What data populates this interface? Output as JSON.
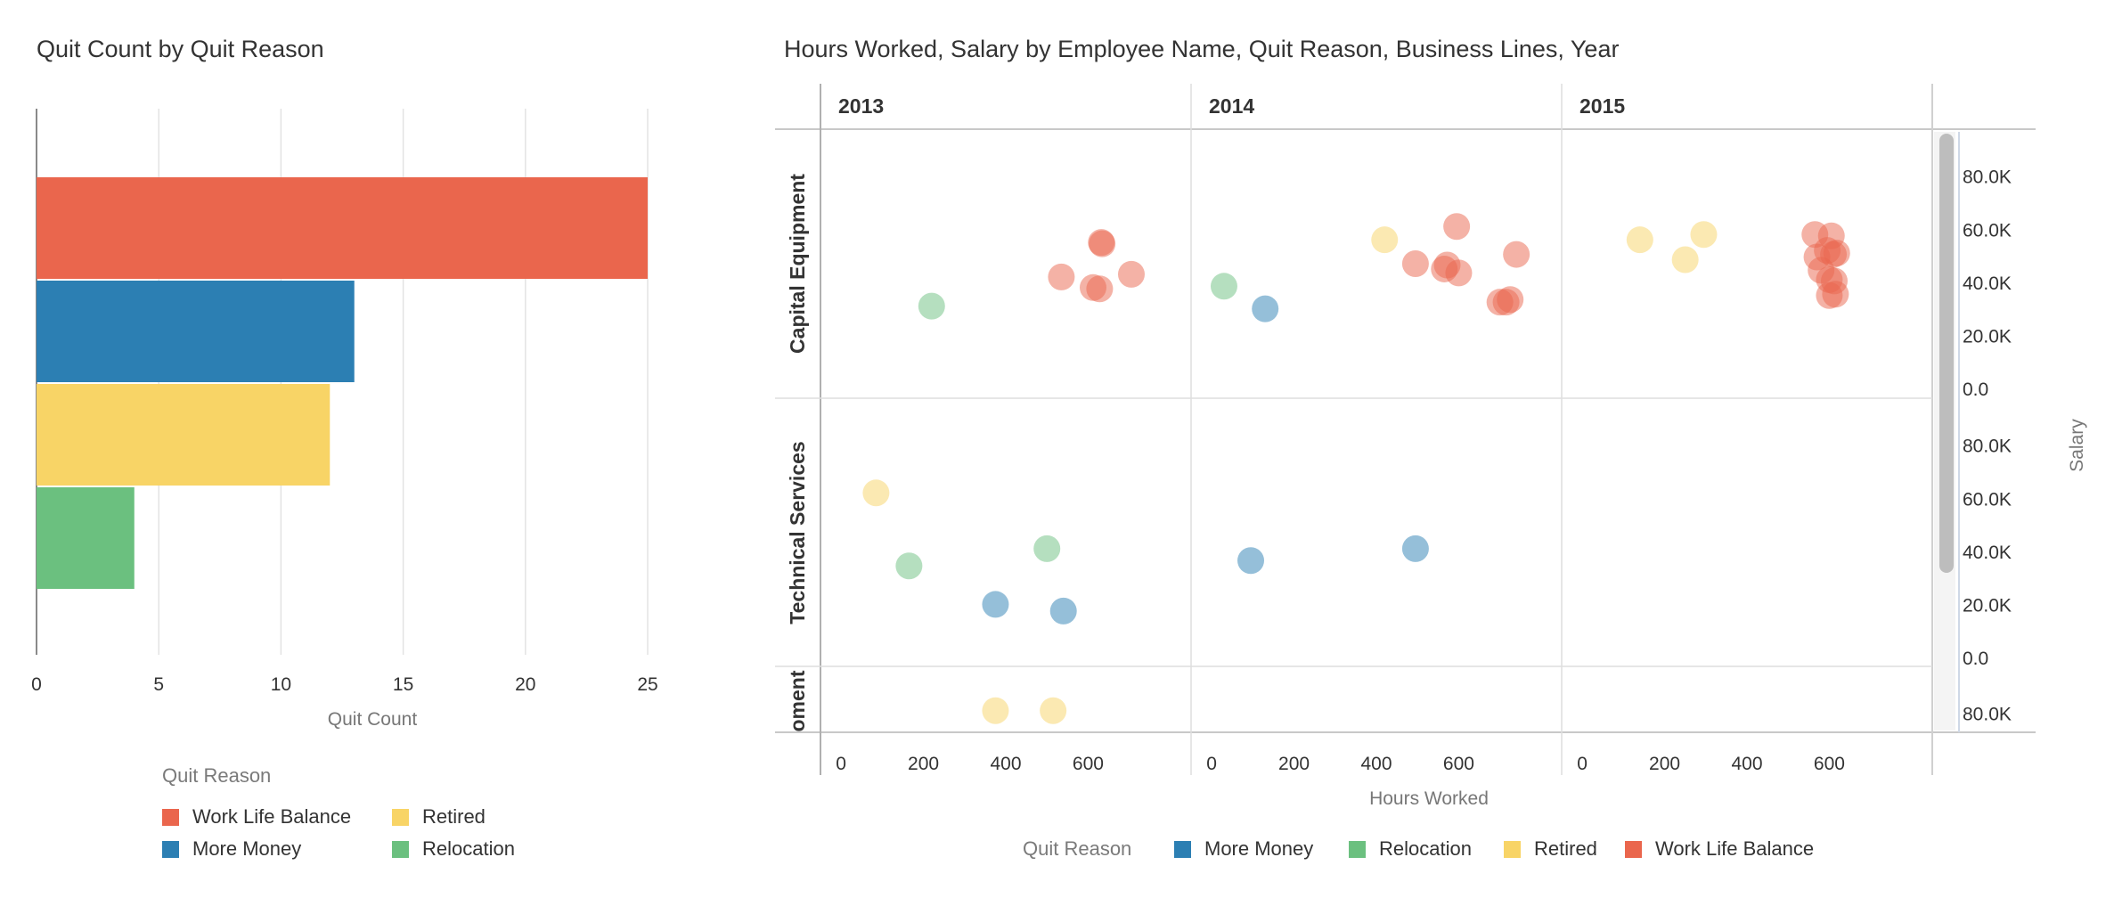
{
  "colors": {
    "work_life_balance": "#EA664D",
    "more_money": "#2C7FB3",
    "retired": "#F8D466",
    "relocation": "#6BC07F"
  },
  "chart_data": [
    {
      "type": "bar",
      "orientation": "horizontal",
      "title": "Quit Count by Quit Reason",
      "xlabel": "Quit Count",
      "ylabel": "",
      "xlim": [
        0,
        25
      ],
      "xticks": [
        "0",
        "5",
        "10",
        "15",
        "20",
        "25"
      ],
      "grid": true,
      "categories": [
        "Work Life Balance",
        "More Money",
        "Retired",
        "Relocation"
      ],
      "values": [
        25,
        13,
        12,
        4
      ],
      "legend": {
        "title": "Quit Reason",
        "placement": "bottom",
        "items": [
          {
            "label": "Work Life Balance",
            "color": "#EA664D"
          },
          {
            "label": "Retired",
            "color": "#F8D466"
          },
          {
            "label": "More Money",
            "color": "#2C7FB3"
          },
          {
            "label": "Relocation",
            "color": "#6BC07F"
          }
        ]
      }
    },
    {
      "type": "scatter",
      "title": "Hours Worked, Salary by Employee Name, Quit Reason, Business Lines, Year",
      "xlabel": "Hours Worked",
      "ylabel": "Salary",
      "columns": [
        "2013",
        "2014",
        "2015"
      ],
      "rows": [
        "Capital Equipment",
        "Technical Services",
        "oment"
      ],
      "xlim": [
        -50,
        850
      ],
      "xticks": [
        "0",
        "200",
        "400",
        "600"
      ],
      "ylim": [
        0,
        95000
      ],
      "yticks": [
        "0.0",
        "20.0K",
        "40.0K",
        "60.0K",
        "80.0K"
      ],
      "legend": {
        "title": "Quit Reason",
        "placement": "bottom",
        "items": [
          {
            "label": "More Money",
            "color": "#2C7FB3"
          },
          {
            "label": "Relocation",
            "color": "#6BC07F"
          },
          {
            "label": "Retired",
            "color": "#F8D466"
          },
          {
            "label": "Work Life Balance",
            "color": "#EA664D"
          }
        ]
      },
      "points": [
        {
          "row": 0,
          "col": 0,
          "reason": "Relocation",
          "x": 220,
          "y": 31000
        },
        {
          "row": 0,
          "col": 0,
          "reason": "Work Life Balance",
          "x": 535,
          "y": 42000
        },
        {
          "row": 0,
          "col": 0,
          "reason": "Work Life Balance",
          "x": 612,
          "y": 38000
        },
        {
          "row": 0,
          "col": 0,
          "reason": "Work Life Balance",
          "x": 628,
          "y": 37500
        },
        {
          "row": 0,
          "col": 0,
          "reason": "Work Life Balance",
          "x": 632,
          "y": 55000
        },
        {
          "row": 0,
          "col": 0,
          "reason": "Work Life Balance",
          "x": 634,
          "y": 54500
        },
        {
          "row": 0,
          "col": 0,
          "reason": "Work Life Balance",
          "x": 705,
          "y": 43000
        },
        {
          "row": 0,
          "col": 1,
          "reason": "Relocation",
          "x": 30,
          "y": 38500
        },
        {
          "row": 0,
          "col": 1,
          "reason": "More Money",
          "x": 130,
          "y": 30000
        },
        {
          "row": 0,
          "col": 1,
          "reason": "Retired",
          "x": 420,
          "y": 56000
        },
        {
          "row": 0,
          "col": 1,
          "reason": "Work Life Balance",
          "x": 495,
          "y": 47000
        },
        {
          "row": 0,
          "col": 1,
          "reason": "Work Life Balance",
          "x": 565,
          "y": 45000
        },
        {
          "row": 0,
          "col": 1,
          "reason": "Work Life Balance",
          "x": 572,
          "y": 46500
        },
        {
          "row": 0,
          "col": 1,
          "reason": "Work Life Balance",
          "x": 600,
          "y": 43500
        },
        {
          "row": 0,
          "col": 1,
          "reason": "Work Life Balance",
          "x": 595,
          "y": 61000
        },
        {
          "row": 0,
          "col": 1,
          "reason": "Work Life Balance",
          "x": 700,
          "y": 32500
        },
        {
          "row": 0,
          "col": 1,
          "reason": "Work Life Balance",
          "x": 715,
          "y": 32500
        },
        {
          "row": 0,
          "col": 1,
          "reason": "Work Life Balance",
          "x": 725,
          "y": 33500
        },
        {
          "row": 0,
          "col": 1,
          "reason": "Work Life Balance",
          "x": 740,
          "y": 50500
        },
        {
          "row": 0,
          "col": 2,
          "reason": "Retired",
          "x": 140,
          "y": 56000
        },
        {
          "row": 0,
          "col": 2,
          "reason": "Retired",
          "x": 250,
          "y": 48500
        },
        {
          "row": 0,
          "col": 2,
          "reason": "Retired",
          "x": 295,
          "y": 58000
        },
        {
          "row": 0,
          "col": 2,
          "reason": "Work Life Balance",
          "x": 565,
          "y": 58000
        },
        {
          "row": 0,
          "col": 2,
          "reason": "Work Life Balance",
          "x": 570,
          "y": 49500
        },
        {
          "row": 0,
          "col": 2,
          "reason": "Work Life Balance",
          "x": 580,
          "y": 44500
        },
        {
          "row": 0,
          "col": 2,
          "reason": "Work Life Balance",
          "x": 595,
          "y": 52000
        },
        {
          "row": 0,
          "col": 2,
          "reason": "Work Life Balance",
          "x": 600,
          "y": 41000
        },
        {
          "row": 0,
          "col": 2,
          "reason": "Work Life Balance",
          "x": 600,
          "y": 35000
        },
        {
          "row": 0,
          "col": 2,
          "reason": "Work Life Balance",
          "x": 605,
          "y": 57500
        },
        {
          "row": 0,
          "col": 2,
          "reason": "Work Life Balance",
          "x": 610,
          "y": 50500
        },
        {
          "row": 0,
          "col": 2,
          "reason": "Work Life Balance",
          "x": 612,
          "y": 40500
        },
        {
          "row": 0,
          "col": 2,
          "reason": "Work Life Balance",
          "x": 615,
          "y": 35500
        },
        {
          "row": 0,
          "col": 2,
          "reason": "Work Life Balance",
          "x": 618,
          "y": 51000
        },
        {
          "row": 1,
          "col": 0,
          "reason": "Retired",
          "x": 85,
          "y": 62000
        },
        {
          "row": 1,
          "col": 0,
          "reason": "Relocation",
          "x": 165,
          "y": 34500
        },
        {
          "row": 1,
          "col": 0,
          "reason": "Relocation",
          "x": 500,
          "y": 41000
        },
        {
          "row": 1,
          "col": 0,
          "reason": "More Money",
          "x": 375,
          "y": 20000
        },
        {
          "row": 1,
          "col": 0,
          "reason": "More Money",
          "x": 540,
          "y": 17500
        },
        {
          "row": 1,
          "col": 1,
          "reason": "More Money",
          "x": 95,
          "y": 36500
        },
        {
          "row": 1,
          "col": 1,
          "reason": "More Money",
          "x": 495,
          "y": 41000
        },
        {
          "row": 2,
          "col": 0,
          "reason": "Retired",
          "x": 375,
          "y": 81000
        },
        {
          "row": 2,
          "col": 0,
          "reason": "Retired",
          "x": 515,
          "y": 81000
        }
      ]
    }
  ]
}
